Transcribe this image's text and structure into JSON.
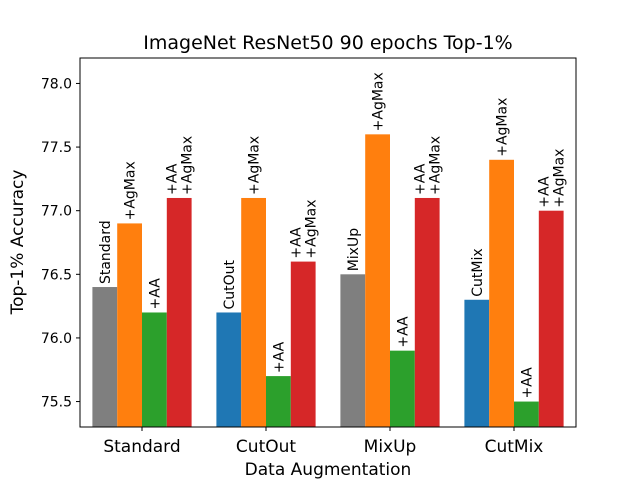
{
  "chart_data": {
    "type": "bar",
    "title": "ImageNet ResNet50 90 epochs Top-1%",
    "xlabel": "Data Augmentation",
    "ylabel": "Top-1% Accuracy",
    "ylim": [
      75.3,
      78.2
    ],
    "yticks": [
      "75.5",
      "76.0",
      "76.5",
      "77.0",
      "77.5",
      "78.0"
    ],
    "categories": [
      "Standard",
      "CutOut",
      "MixUp",
      "CutMix"
    ],
    "grid": false,
    "legend": "none",
    "series": [
      {
        "values": [
          76.4,
          76.2,
          76.5,
          76.3
        ],
        "colors": [
          "#7f7f7f",
          "#1f77b4",
          "#7f7f7f",
          "#1f77b4"
        ],
        "labels": [
          [
            "Standard"
          ],
          [
            "CutOut"
          ],
          [
            "MixUp"
          ],
          [
            "CutMix"
          ]
        ]
      },
      {
        "values": [
          76.9,
          77.1,
          77.6,
          77.4
        ],
        "colors": [
          "#ff7f0e",
          "#ff7f0e",
          "#ff7f0e",
          "#ff7f0e"
        ],
        "labels": [
          [
            "+AgMax"
          ],
          [
            "+AgMax"
          ],
          [
            "+AgMax"
          ],
          [
            "+AgMax"
          ]
        ]
      },
      {
        "values": [
          76.2,
          75.7,
          75.9,
          75.5
        ],
        "colors": [
          "#2ca02c",
          "#2ca02c",
          "#2ca02c",
          "#2ca02c"
        ],
        "labels": [
          [
            "+AA"
          ],
          [
            "+AA"
          ],
          [
            "+AA"
          ],
          [
            "+AA"
          ]
        ]
      },
      {
        "values": [
          77.1,
          76.6,
          77.1,
          77.0
        ],
        "colors": [
          "#d62728",
          "#d62728",
          "#d62728",
          "#d62728"
        ],
        "labels": [
          [
            "+AA",
            "+AgMax"
          ],
          [
            "+AA",
            "+AgMax"
          ],
          [
            "+AA",
            "+AgMax"
          ],
          [
            "+AA",
            "+AgMax"
          ]
        ]
      }
    ]
  }
}
